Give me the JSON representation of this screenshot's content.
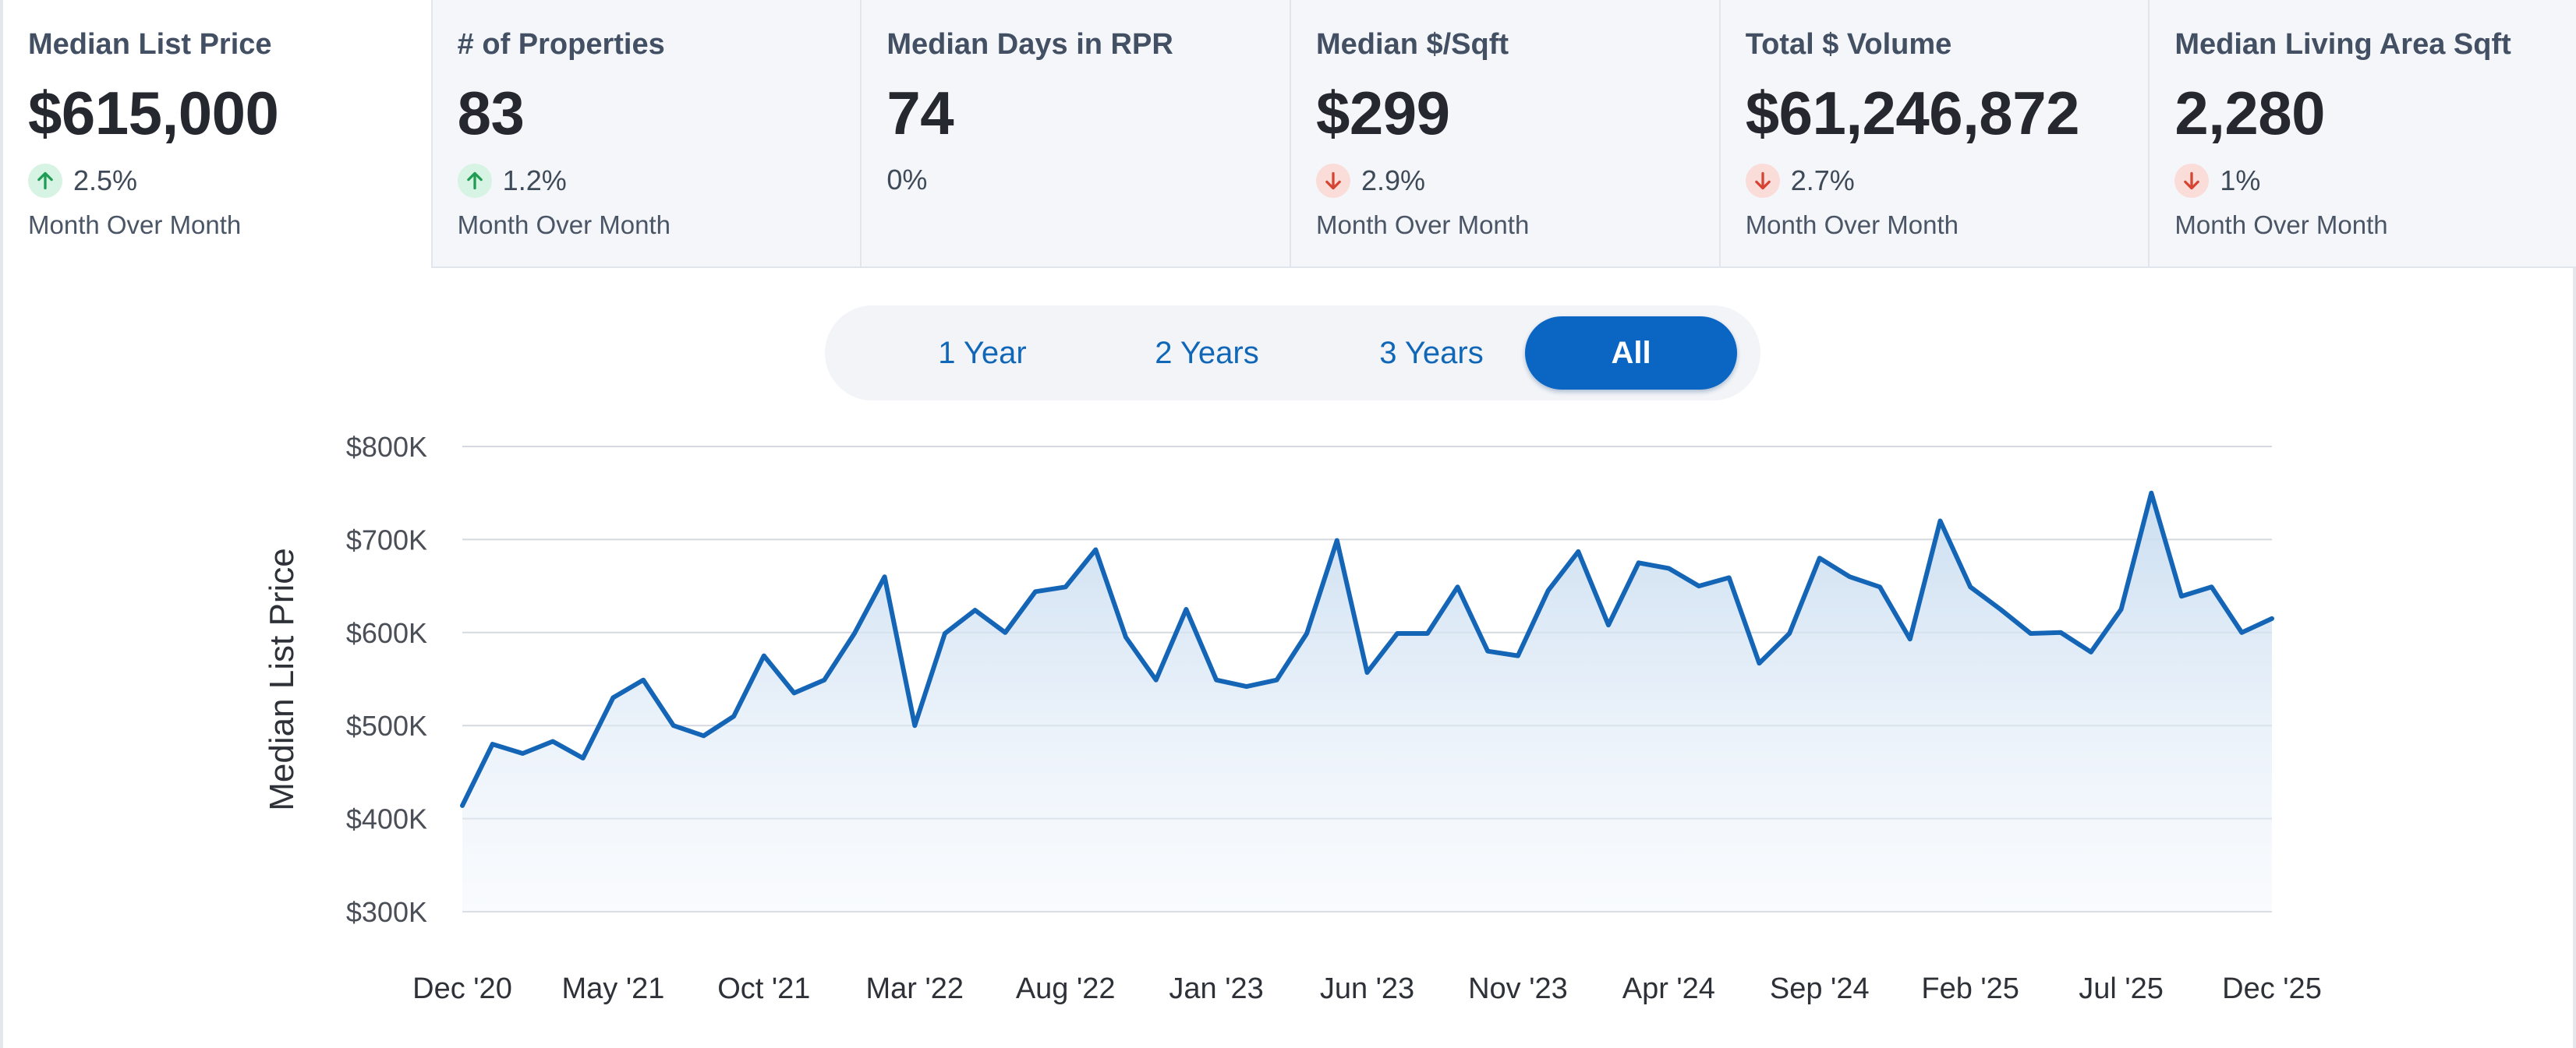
{
  "cards": [
    {
      "title": "Median List Price",
      "value": "$615,000",
      "direction": "up",
      "change": "2.5%",
      "period": "Month Over Month",
      "active": true
    },
    {
      "title": "# of Properties",
      "value": "83",
      "direction": "up",
      "change": "1.2%",
      "period": "Month Over Month",
      "active": false
    },
    {
      "title": "Median Days in RPR",
      "value": "74",
      "direction": "none",
      "change": "0%",
      "period": "",
      "active": false
    },
    {
      "title": "Median $/Sqft",
      "value": "$299",
      "direction": "down",
      "change": "2.9%",
      "period": "Month Over Month",
      "active": false
    },
    {
      "title": "Total $ Volume",
      "value": "$61,246,872",
      "direction": "down",
      "change": "2.7%",
      "period": "Month Over Month",
      "active": false
    },
    {
      "title": "Median Living Area Sqft",
      "value": "2,280",
      "direction": "down",
      "change": "1%",
      "period": "Month Over Month",
      "active": false
    }
  ],
  "colors": {
    "up": "#1f9d55",
    "down": "#d64534",
    "line": "#1565b6",
    "accent": "#0a66c2"
  },
  "range": {
    "options": [
      "1 Year",
      "2 Years",
      "3 Years",
      "All"
    ],
    "selected": "All"
  },
  "chart_data": {
    "type": "area",
    "title": "",
    "ylabel": "Median List Price",
    "xlabel": "",
    "ylim": [
      300000,
      800000
    ],
    "y_ticks": [
      {
        "value": 300000,
        "label": "$300K"
      },
      {
        "value": 400000,
        "label": "$400K"
      },
      {
        "value": 500000,
        "label": "$500K"
      },
      {
        "value": 600000,
        "label": "$600K"
      },
      {
        "value": 700000,
        "label": "$700K"
      },
      {
        "value": 800000,
        "label": "$800K"
      }
    ],
    "x_ticks": [
      {
        "index": 0,
        "label": "Dec '20"
      },
      {
        "index": 5,
        "label": "May '21"
      },
      {
        "index": 10,
        "label": "Oct '21"
      },
      {
        "index": 15,
        "label": "Mar '22"
      },
      {
        "index": 20,
        "label": "Aug '22"
      },
      {
        "index": 25,
        "label": "Jan '23"
      },
      {
        "index": 30,
        "label": "Jun '23"
      },
      {
        "index": 35,
        "label": "Nov '23"
      },
      {
        "index": 40,
        "label": "Apr '24"
      },
      {
        "index": 45,
        "label": "Sep '24"
      },
      {
        "index": 50,
        "label": "Feb '25"
      },
      {
        "index": 55,
        "label": "Jul '25"
      },
      {
        "index": 60,
        "label": "Dec '25"
      }
    ],
    "grid": true,
    "legend": "none",
    "series": [
      {
        "x": [
          "Dec '20",
          "Jan '21",
          "Feb '21",
          "Mar '21",
          "Apr '21",
          "May '21",
          "Jun '21",
          "Jul '21",
          "Aug '21",
          "Sep '21",
          "Oct '21",
          "Nov '21",
          "Dec '21",
          "Jan '22",
          "Feb '22",
          "Mar '22",
          "Apr '22",
          "May '22",
          "Jun '22",
          "Jul '22",
          "Aug '22",
          "Sep '22",
          "Oct '22",
          "Nov '22",
          "Dec '22",
          "Jan '23",
          "Feb '23",
          "Mar '23",
          "Apr '23",
          "May '23",
          "Jun '23",
          "Jul '23",
          "Aug '23",
          "Sep '23",
          "Oct '23",
          "Nov '23",
          "Dec '23",
          "Jan '24",
          "Feb '24",
          "Mar '24",
          "Apr '24",
          "May '24",
          "Jun '24",
          "Jul '24",
          "Aug '24",
          "Sep '24",
          "Oct '24",
          "Nov '24",
          "Dec '24",
          "Jan '25",
          "Feb '25",
          "Mar '25",
          "Apr '25",
          "May '25",
          "Jun '25",
          "Jul '25",
          "Aug '25",
          "Sep '25",
          "Oct '25",
          "Nov '25",
          "Dec '25"
        ],
        "values": [
          414000,
          480000,
          470000,
          483000,
          465000,
          530000,
          549000,
          500000,
          489000,
          510000,
          575000,
          535000,
          549000,
          599000,
          660000,
          500000,
          599000,
          624000,
          600000,
          644000,
          649000,
          689000,
          595000,
          549000,
          625000,
          549000,
          542000,
          549000,
          599000,
          699000,
          557000,
          599000,
          599000,
          649000,
          580000,
          575000,
          645000,
          687000,
          608000,
          675000,
          669000,
          650000,
          659000,
          567000,
          599000,
          680000,
          660000,
          649000,
          593000,
          720000,
          649000,
          625000,
          599000,
          600000,
          579000,
          625000,
          750000,
          639000,
          649000,
          600000,
          615000
        ]
      }
    ]
  }
}
